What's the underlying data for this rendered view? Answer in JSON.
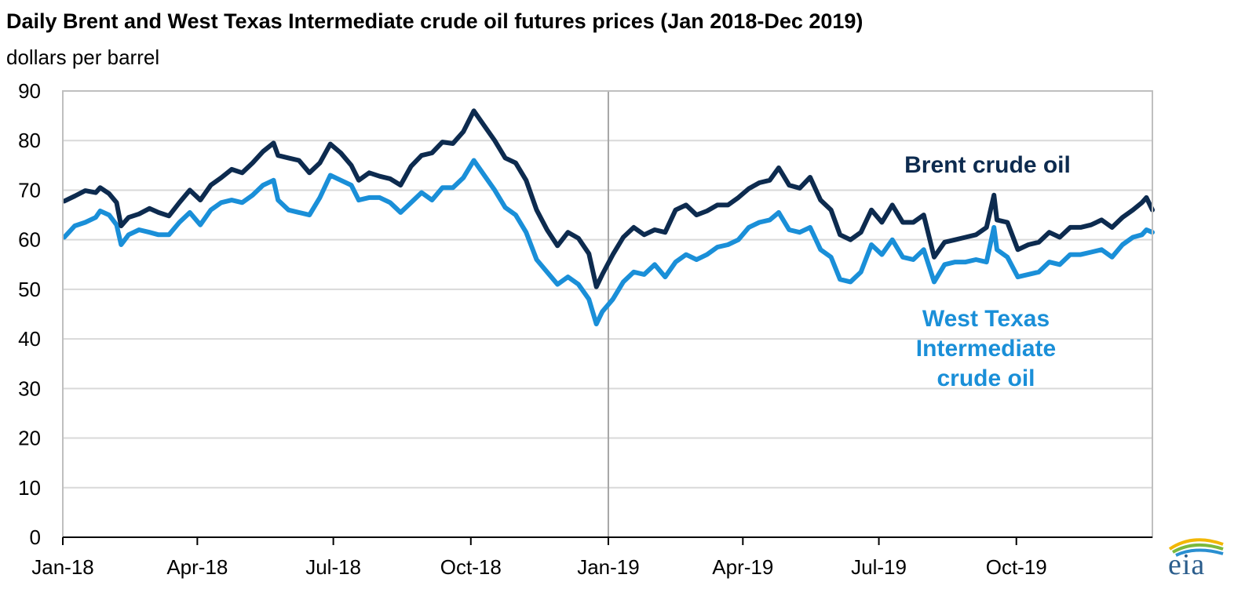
{
  "chart_data": {
    "type": "line",
    "title": "Daily Brent and West Texas Intermediate crude oil futures prices (Jan 2018-Dec 2019)",
    "ylabel": "dollars per barrel",
    "xlabel": "",
    "ylim": [
      0,
      90
    ],
    "xlim": [
      "2018-01-01",
      "2019-12-31"
    ],
    "yticks": [
      0,
      10,
      20,
      30,
      40,
      50,
      60,
      70,
      80,
      90
    ],
    "xticks": [
      {
        "date": "2018-01-01",
        "label": "Jan-18"
      },
      {
        "date": "2018-04-01",
        "label": "Apr-18"
      },
      {
        "date": "2018-07-01",
        "label": "Jul-18"
      },
      {
        "date": "2018-10-01",
        "label": "Oct-18"
      },
      {
        "date": "2019-01-01",
        "label": "Jan-19"
      },
      {
        "date": "2019-04-01",
        "label": "Apr-19"
      },
      {
        "date": "2019-07-01",
        "label": "Jul-19"
      },
      {
        "date": "2019-10-01",
        "label": "Oct-19"
      }
    ],
    "reference_line": "2019-01-01",
    "grid": "horizontal",
    "series": [
      {
        "name": "Brent crude oil",
        "color": "#0d2b4f",
        "points": [
          [
            "2018-01-02",
            67.8
          ],
          [
            "2018-01-09",
            68.8
          ],
          [
            "2018-01-16",
            69.9
          ],
          [
            "2018-01-23",
            69.5
          ],
          [
            "2018-01-26",
            70.5
          ],
          [
            "2018-02-01",
            69.3
          ],
          [
            "2018-02-06",
            67.5
          ],
          [
            "2018-02-09",
            62.8
          ],
          [
            "2018-02-14",
            64.5
          ],
          [
            "2018-02-21",
            65.2
          ],
          [
            "2018-02-28",
            66.3
          ],
          [
            "2018-03-06",
            65.5
          ],
          [
            "2018-03-13",
            64.8
          ],
          [
            "2018-03-20",
            67.5
          ],
          [
            "2018-03-27",
            70.0
          ],
          [
            "2018-04-03",
            68.0
          ],
          [
            "2018-04-10",
            71.0
          ],
          [
            "2018-04-17",
            72.5
          ],
          [
            "2018-04-24",
            74.2
          ],
          [
            "2018-05-01",
            73.5
          ],
          [
            "2018-05-08",
            75.5
          ],
          [
            "2018-05-15",
            77.8
          ],
          [
            "2018-05-22",
            79.5
          ],
          [
            "2018-05-25",
            77.0
          ],
          [
            "2018-06-01",
            76.5
          ],
          [
            "2018-06-08",
            76.0
          ],
          [
            "2018-06-15",
            73.5
          ],
          [
            "2018-06-22",
            75.5
          ],
          [
            "2018-06-29",
            79.3
          ],
          [
            "2018-07-06",
            77.5
          ],
          [
            "2018-07-13",
            75.0
          ],
          [
            "2018-07-18",
            72.0
          ],
          [
            "2018-07-25",
            73.5
          ],
          [
            "2018-08-01",
            72.8
          ],
          [
            "2018-08-08",
            72.3
          ],
          [
            "2018-08-15",
            71.0
          ],
          [
            "2018-08-22",
            74.8
          ],
          [
            "2018-08-29",
            77.0
          ],
          [
            "2018-09-05",
            77.5
          ],
          [
            "2018-09-12",
            79.7
          ],
          [
            "2018-09-19",
            79.4
          ],
          [
            "2018-09-26",
            81.8
          ],
          [
            "2018-10-03",
            86.0
          ],
          [
            "2018-10-10",
            83.0
          ],
          [
            "2018-10-17",
            80.0
          ],
          [
            "2018-10-24",
            76.5
          ],
          [
            "2018-10-31",
            75.5
          ],
          [
            "2018-11-07",
            72.0
          ],
          [
            "2018-11-14",
            66.0
          ],
          [
            "2018-11-21",
            62.0
          ],
          [
            "2018-11-28",
            58.8
          ],
          [
            "2018-12-05",
            61.5
          ],
          [
            "2018-12-12",
            60.3
          ],
          [
            "2018-12-19",
            57.2
          ],
          [
            "2018-12-24",
            50.5
          ],
          [
            "2018-12-28",
            53.0
          ],
          [
            "2019-01-04",
            57.0
          ],
          [
            "2019-01-11",
            60.5
          ],
          [
            "2019-01-18",
            62.5
          ],
          [
            "2019-01-25",
            61.0
          ],
          [
            "2019-02-01",
            62.0
          ],
          [
            "2019-02-08",
            61.5
          ],
          [
            "2019-02-15",
            66.0
          ],
          [
            "2019-02-22",
            67.0
          ],
          [
            "2019-03-01",
            65.0
          ],
          [
            "2019-03-08",
            65.8
          ],
          [
            "2019-03-15",
            67.0
          ],
          [
            "2019-03-22",
            67.0
          ],
          [
            "2019-03-29",
            68.5
          ],
          [
            "2019-04-05",
            70.3
          ],
          [
            "2019-04-12",
            71.5
          ],
          [
            "2019-04-19",
            72.0
          ],
          [
            "2019-04-25",
            74.5
          ],
          [
            "2019-05-02",
            71.0
          ],
          [
            "2019-05-09",
            70.4
          ],
          [
            "2019-05-16",
            72.6
          ],
          [
            "2019-05-23",
            68.0
          ],
          [
            "2019-05-30",
            66.0
          ],
          [
            "2019-06-05",
            61.0
          ],
          [
            "2019-06-12",
            60.0
          ],
          [
            "2019-06-19",
            61.5
          ],
          [
            "2019-06-26",
            66.0
          ],
          [
            "2019-07-03",
            63.5
          ],
          [
            "2019-07-10",
            67.0
          ],
          [
            "2019-07-17",
            63.5
          ],
          [
            "2019-07-24",
            63.5
          ],
          [
            "2019-07-31",
            65.0
          ],
          [
            "2019-08-07",
            56.5
          ],
          [
            "2019-08-14",
            59.5
          ],
          [
            "2019-08-21",
            60.0
          ],
          [
            "2019-08-28",
            60.5
          ],
          [
            "2019-09-04",
            61.0
          ],
          [
            "2019-09-11",
            62.5
          ],
          [
            "2019-09-16",
            69.0
          ],
          [
            "2019-09-18",
            64.0
          ],
          [
            "2019-09-25",
            63.5
          ],
          [
            "2019-10-02",
            58.0
          ],
          [
            "2019-10-09",
            59.0
          ],
          [
            "2019-10-16",
            59.5
          ],
          [
            "2019-10-23",
            61.5
          ],
          [
            "2019-10-30",
            60.5
          ],
          [
            "2019-11-06",
            62.5
          ],
          [
            "2019-11-13",
            62.5
          ],
          [
            "2019-11-20",
            63.0
          ],
          [
            "2019-11-27",
            64.0
          ],
          [
            "2019-12-04",
            62.5
          ],
          [
            "2019-12-11",
            64.5
          ],
          [
            "2019-12-18",
            66.0
          ],
          [
            "2019-12-24",
            67.5
          ],
          [
            "2019-12-27",
            68.5
          ],
          [
            "2019-12-31",
            66.0
          ]
        ]
      },
      {
        "name": "West Texas Intermediate crude oil",
        "color": "#1a8fd8",
        "points": [
          [
            "2018-01-02",
            60.5
          ],
          [
            "2018-01-09",
            62.8
          ],
          [
            "2018-01-16",
            63.5
          ],
          [
            "2018-01-23",
            64.5
          ],
          [
            "2018-01-26",
            65.8
          ],
          [
            "2018-02-01",
            65.0
          ],
          [
            "2018-02-06",
            63.0
          ],
          [
            "2018-02-09",
            59.0
          ],
          [
            "2018-02-14",
            61.0
          ],
          [
            "2018-02-21",
            62.0
          ],
          [
            "2018-02-28",
            61.5
          ],
          [
            "2018-03-06",
            61.0
          ],
          [
            "2018-03-13",
            61.0
          ],
          [
            "2018-03-20",
            63.5
          ],
          [
            "2018-03-27",
            65.5
          ],
          [
            "2018-04-03",
            63.0
          ],
          [
            "2018-04-10",
            66.0
          ],
          [
            "2018-04-17",
            67.5
          ],
          [
            "2018-04-24",
            68.0
          ],
          [
            "2018-05-01",
            67.5
          ],
          [
            "2018-05-08",
            69.0
          ],
          [
            "2018-05-15",
            71.0
          ],
          [
            "2018-05-22",
            72.0
          ],
          [
            "2018-05-25",
            68.0
          ],
          [
            "2018-06-01",
            66.0
          ],
          [
            "2018-06-08",
            65.5
          ],
          [
            "2018-06-15",
            65.0
          ],
          [
            "2018-06-22",
            68.5
          ],
          [
            "2018-06-29",
            73.0
          ],
          [
            "2018-07-06",
            72.0
          ],
          [
            "2018-07-13",
            71.0
          ],
          [
            "2018-07-18",
            68.0
          ],
          [
            "2018-07-25",
            68.5
          ],
          [
            "2018-08-01",
            68.5
          ],
          [
            "2018-08-08",
            67.5
          ],
          [
            "2018-08-15",
            65.5
          ],
          [
            "2018-08-22",
            67.5
          ],
          [
            "2018-08-29",
            69.5
          ],
          [
            "2018-09-05",
            68.0
          ],
          [
            "2018-09-12",
            70.5
          ],
          [
            "2018-09-19",
            70.5
          ],
          [
            "2018-09-26",
            72.5
          ],
          [
            "2018-10-03",
            76.0
          ],
          [
            "2018-10-10",
            73.0
          ],
          [
            "2018-10-17",
            70.0
          ],
          [
            "2018-10-24",
            66.5
          ],
          [
            "2018-10-31",
            65.0
          ],
          [
            "2018-11-07",
            61.5
          ],
          [
            "2018-11-14",
            56.0
          ],
          [
            "2018-11-21",
            53.5
          ],
          [
            "2018-11-28",
            51.0
          ],
          [
            "2018-12-05",
            52.5
          ],
          [
            "2018-12-12",
            51.0
          ],
          [
            "2018-12-19",
            48.0
          ],
          [
            "2018-12-24",
            43.0
          ],
          [
            "2018-12-28",
            45.5
          ],
          [
            "2019-01-04",
            48.0
          ],
          [
            "2019-01-11",
            51.5
          ],
          [
            "2019-01-18",
            53.5
          ],
          [
            "2019-01-25",
            53.0
          ],
          [
            "2019-02-01",
            55.0
          ],
          [
            "2019-02-08",
            52.5
          ],
          [
            "2019-02-15",
            55.5
          ],
          [
            "2019-02-22",
            57.0
          ],
          [
            "2019-03-01",
            56.0
          ],
          [
            "2019-03-08",
            57.0
          ],
          [
            "2019-03-15",
            58.5
          ],
          [
            "2019-03-22",
            59.0
          ],
          [
            "2019-03-29",
            60.0
          ],
          [
            "2019-04-05",
            62.5
          ],
          [
            "2019-04-12",
            63.5
          ],
          [
            "2019-04-19",
            64.0
          ],
          [
            "2019-04-25",
            65.5
          ],
          [
            "2019-05-02",
            62.0
          ],
          [
            "2019-05-09",
            61.5
          ],
          [
            "2019-05-16",
            62.5
          ],
          [
            "2019-05-23",
            58.0
          ],
          [
            "2019-05-30",
            56.5
          ],
          [
            "2019-06-05",
            52.0
          ],
          [
            "2019-06-12",
            51.5
          ],
          [
            "2019-06-19",
            53.5
          ],
          [
            "2019-06-26",
            59.0
          ],
          [
            "2019-07-03",
            57.0
          ],
          [
            "2019-07-10",
            60.0
          ],
          [
            "2019-07-17",
            56.5
          ],
          [
            "2019-07-24",
            56.0
          ],
          [
            "2019-07-31",
            58.0
          ],
          [
            "2019-08-07",
            51.5
          ],
          [
            "2019-08-14",
            55.0
          ],
          [
            "2019-08-21",
            55.5
          ],
          [
            "2019-08-28",
            55.5
          ],
          [
            "2019-09-04",
            56.0
          ],
          [
            "2019-09-11",
            55.5
          ],
          [
            "2019-09-16",
            62.5
          ],
          [
            "2019-09-18",
            58.0
          ],
          [
            "2019-09-25",
            56.5
          ],
          [
            "2019-10-02",
            52.5
          ],
          [
            "2019-10-09",
            53.0
          ],
          [
            "2019-10-16",
            53.5
          ],
          [
            "2019-10-23",
            55.5
          ],
          [
            "2019-10-30",
            55.0
          ],
          [
            "2019-11-06",
            57.0
          ],
          [
            "2019-11-13",
            57.0
          ],
          [
            "2019-11-20",
            57.5
          ],
          [
            "2019-11-27",
            58.0
          ],
          [
            "2019-12-04",
            56.5
          ],
          [
            "2019-12-11",
            59.0
          ],
          [
            "2019-12-18",
            60.5
          ],
          [
            "2019-12-24",
            61.0
          ],
          [
            "2019-12-27",
            62.0
          ],
          [
            "2019-12-31",
            61.5
          ]
        ]
      }
    ],
    "annotations": {
      "brent_label": "Brent crude oil",
      "wti_label_lines": [
        "West Texas",
        "Intermediate",
        "crude oil"
      ]
    }
  },
  "logo_text": "eia"
}
